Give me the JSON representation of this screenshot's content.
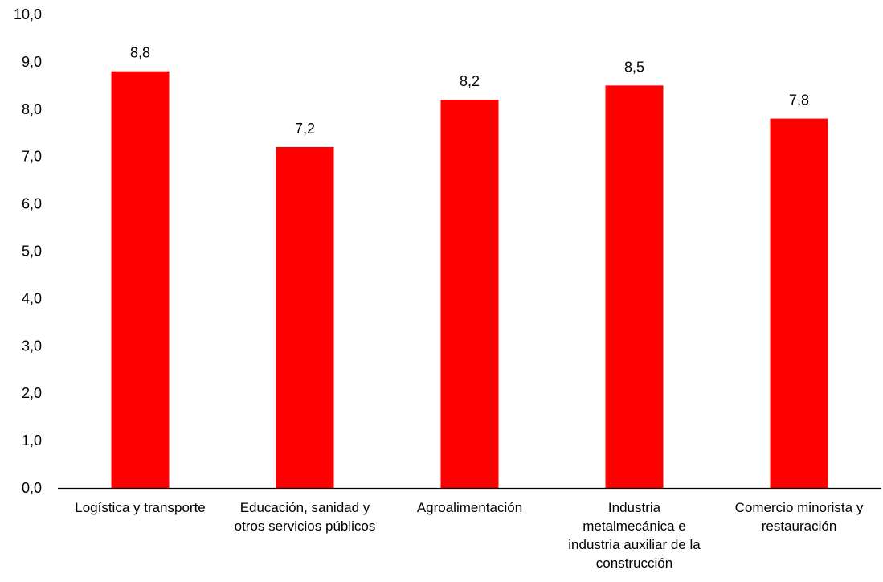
{
  "chart_data": {
    "type": "bar",
    "categories": [
      [
        "Logística y transporte"
      ],
      [
        "Educación, sanidad y",
        "otros servicios públicos"
      ],
      [
        "Agroalimentación"
      ],
      [
        "Industria",
        "metalmecánica e",
        "industria auxiliar de la",
        "construcción"
      ],
      [
        "Comercio minorista y",
        "restauración"
      ]
    ],
    "values": [
      8.8,
      7.2,
      8.2,
      8.5,
      7.8
    ],
    "data_labels": [
      "8,8",
      "7,2",
      "8,2",
      "8,5",
      "7,8"
    ],
    "ylim": [
      0,
      10
    ],
    "yticks": [
      "0,0",
      "1,0",
      "2,0",
      "3,0",
      "4,0",
      "5,0",
      "6,0",
      "7,0",
      "8,0",
      "9,0",
      "10,0"
    ],
    "grid": false,
    "legend": "none",
    "bar_color": "#FF0000",
    "axis_color": "#000000"
  }
}
